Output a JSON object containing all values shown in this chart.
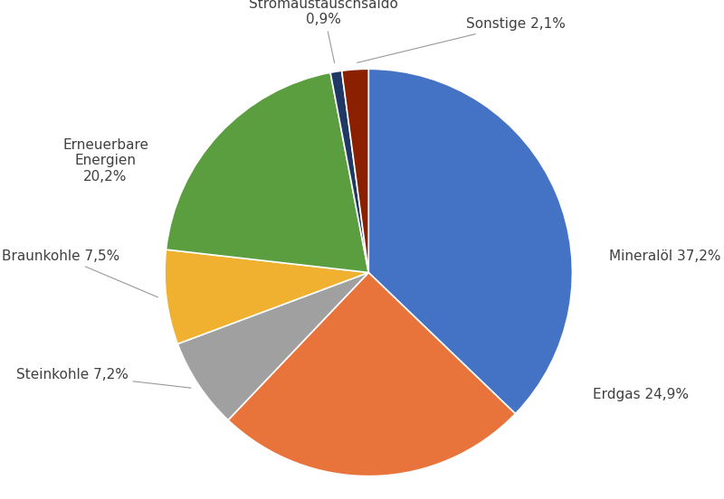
{
  "labels": [
    "Mineralöl 37,2%",
    "Erdgas 24,9%",
    "Steinkohle 7,2%",
    "Braunkohle 7,5%",
    "Erneuerbare\nEnergien\n20,2%",
    "Stromaustauschsaldo\n0,9%",
    "Sonstige 2,1%"
  ],
  "values": [
    37.2,
    24.9,
    7.2,
    7.5,
    20.2,
    0.9,
    2.1
  ],
  "colors": [
    "#4472C4",
    "#E8743B",
    "#A0A0A0",
    "#F0B030",
    "#5B9E40",
    "#1F3864",
    "#8B2000"
  ],
  "startangle": 90,
  "counterclock": false,
  "background_color": "#FFFFFF",
  "font_size": 11,
  "label_color": "#404040"
}
